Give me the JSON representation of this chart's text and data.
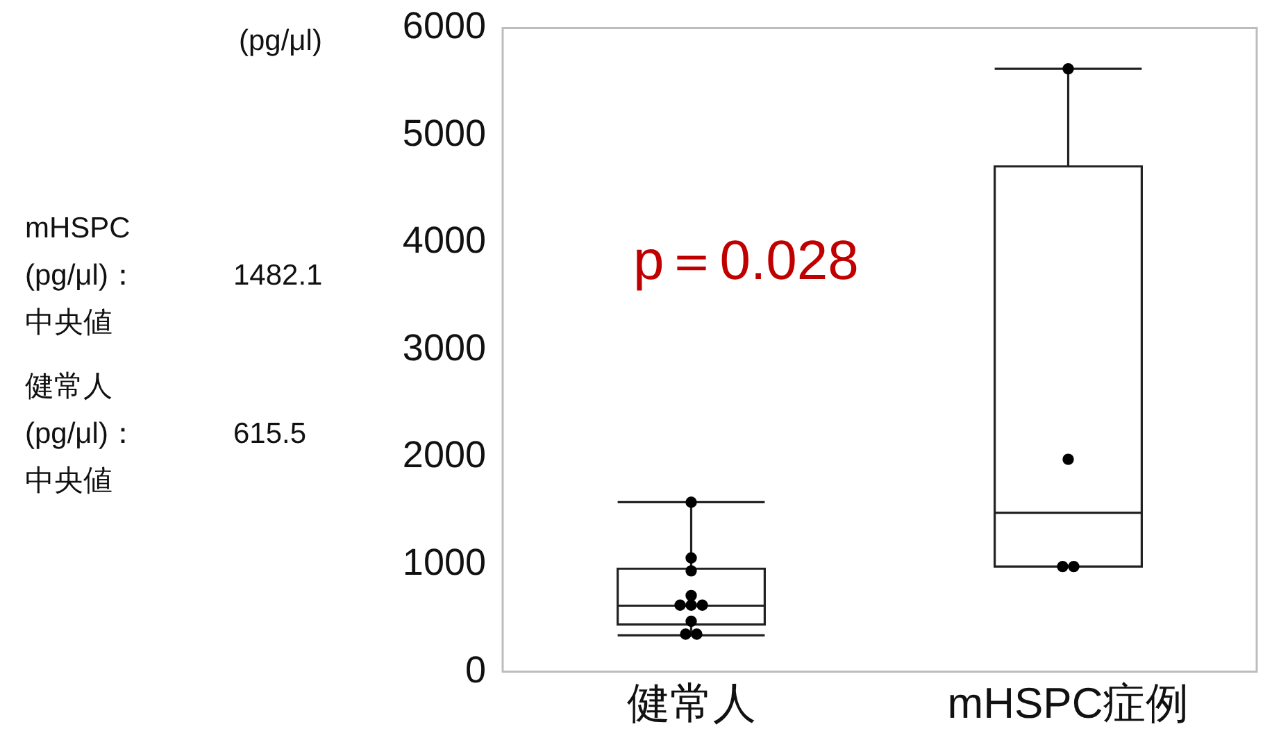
{
  "chart_data": {
    "type": "box",
    "ylabel": "(pg/μl)",
    "categories": [
      "健常人",
      "mHSPC症例"
    ],
    "boxes": [
      {
        "low": 340,
        "q1": 440,
        "median": 615.5,
        "q3": 960,
        "high": 1580
      },
      {
        "low": 980,
        "q1": 980,
        "median": 1482.1,
        "q3": 4710,
        "high": 5620
      }
    ],
    "series": [
      {
        "type": "scatter",
        "color": "#000000",
        "x": [
          "健常人",
          "健常人",
          "健常人",
          "健常人",
          "健常人",
          "健常人",
          "健常人",
          "健常人",
          "健常人",
          "健常人",
          "mHSPC症例",
          "mHSPC症例",
          "mHSPC症例",
          "mHSPC症例"
        ],
        "values": [
          1580,
          1060,
          940,
          710,
          620,
          620,
          620,
          470,
          350,
          350,
          5620,
          1980,
          980,
          980
        ]
      }
    ],
    "ylim": [
      0,
      6000
    ],
    "yticks": [
      0,
      1000,
      2000,
      3000,
      4000,
      5000,
      6000
    ],
    "grid": false,
    "legend": false,
    "marker": "circle",
    "annotations": [
      "p＝0.028",
      "mHSPC",
      "(pg/μl)：",
      "中央値",
      "1482.1",
      "健常人",
      "(pg/μl)：",
      "中央値",
      "615.5"
    ]
  }
}
